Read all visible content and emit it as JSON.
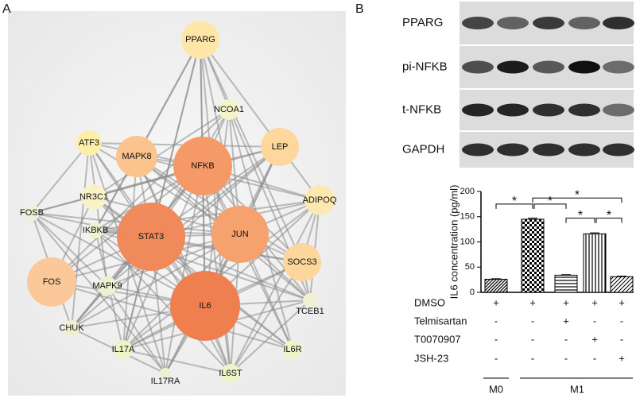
{
  "panels": {
    "a": "A",
    "b": "B"
  },
  "network": {
    "nodes": [
      "PPARG",
      "NCOA1",
      "ATF3",
      "MAPK8",
      "NFKB",
      "LEP",
      "ADIPOQ",
      "NR3C1",
      "FOSB",
      "IKBKB",
      "STAT3",
      "JUN",
      "SOCS3",
      "FOS",
      "MAPK9",
      "TCEB1",
      "IL6",
      "CHUK",
      "IL17A",
      "IL6R",
      "IL17RA",
      "IL6ST"
    ]
  },
  "blot": {
    "rows": [
      "PPARG",
      "pi-NFKB",
      "t-NFKB",
      "GAPDH"
    ]
  },
  "chart_data": {
    "type": "bar",
    "y_label": "IL6 concentration (pg/ml)",
    "categories": [
      null,
      null,
      null,
      null,
      null
    ],
    "values": [
      26,
      145,
      34,
      116,
      31
    ],
    "errors": [
      1,
      2,
      1,
      2,
      1
    ],
    "ylim": [
      0,
      200
    ],
    "yticks": [
      0,
      50,
      100,
      150,
      200
    ],
    "annotations": [
      {
        "text": "*",
        "between": [
          0,
          1
        ]
      },
      {
        "text": "*",
        "between": [
          1,
          2
        ]
      },
      {
        "text": "*",
        "between": [
          1,
          4
        ]
      },
      {
        "text": "*",
        "between": [
          2,
          3
        ]
      },
      {
        "text": "*",
        "between": [
          3,
          4
        ]
      }
    ]
  },
  "treatments": {
    "rows": [
      {
        "label": "DMSO",
        "cells": [
          "+",
          "+",
          "+",
          "+",
          "+"
        ]
      },
      {
        "label": "Telmisartan",
        "cells": [
          "-",
          "-",
          "+",
          "-",
          "-"
        ]
      },
      {
        "label": "T0070907",
        "cells": [
          "-",
          "-",
          "-",
          "+",
          "-"
        ]
      },
      {
        "label": "JSH-23",
        "cells": [
          "-",
          "-",
          "-",
          "-",
          "+"
        ]
      }
    ],
    "groups": [
      "M0",
      "M1"
    ]
  }
}
